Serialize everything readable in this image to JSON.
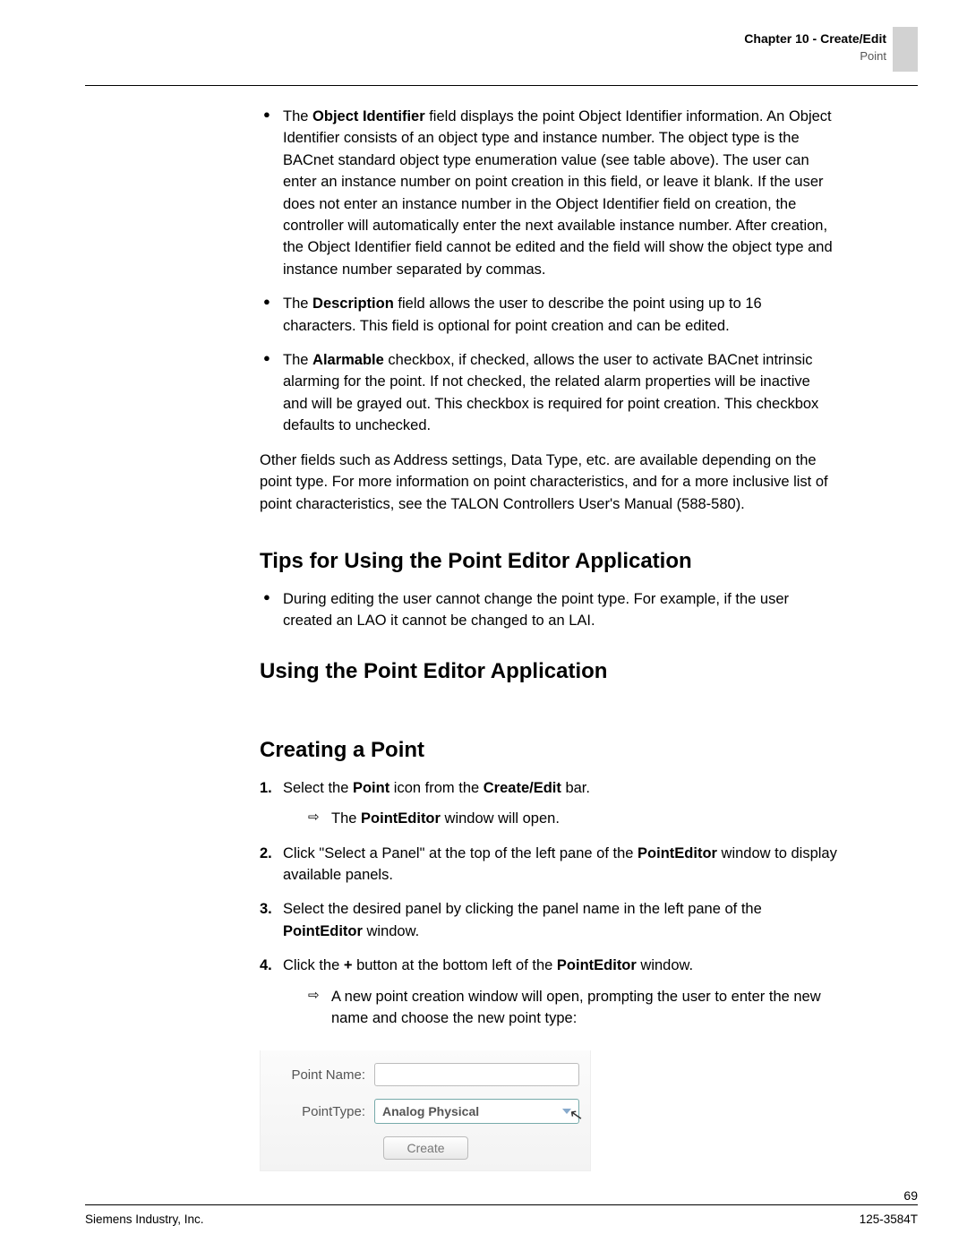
{
  "header": {
    "chapter_label": "Chapter 10 - Create/Edit",
    "section_label": "Point"
  },
  "bullets_top": [
    {
      "prefix": "The ",
      "bold": "Object Identifier",
      "rest": " field displays the point Object Identifier information. An Object Identifier consists of an object type and instance number. The object type is the BACnet standard object type enumeration value (see table above). The user can enter an instance number on point creation in this field, or leave it blank. If the user does not enter an instance number in the Object Identifier field on creation, the controller will automatically enter the next available instance number. After creation, the Object Identifier field cannot be edited and the field will show the object type and instance number separated by commas."
    },
    {
      "prefix": "The ",
      "bold": "Description",
      "rest": " field allows the user to describe the point using up to 16 characters. This field is optional for point creation and can be edited."
    },
    {
      "prefix": "The ",
      "bold": "Alarmable",
      "rest": " checkbox, if checked, allows the user to activate BACnet intrinsic alarming for the point. If not checked, the related alarm properties will be inactive and will be grayed out. This checkbox is required for point creation. This checkbox defaults to unchecked."
    }
  ],
  "after_bullets_para": "Other fields such as Address settings, Data Type, etc. are available depending on the point type. For more information on point characteristics, and for a more inclusive list of point characteristics, see the TALON Controllers User's Manual (588-580).",
  "h_tips": "Tips for Using the Point Editor Application",
  "tips_bullets": [
    "During editing the user cannot change the point type. For example, if the user created an LAO it cannot be changed to an LAI."
  ],
  "h_using": "Using the Point Editor Application",
  "h_creating": "Creating a Point",
  "steps": [
    {
      "num": "1.",
      "html": "Select the <b>Point</b> icon from the <b>Create/Edit</b> bar.",
      "sub": "The <b>PointEditor</b> window will open."
    },
    {
      "num": "2.",
      "html": "Click \"Select a Panel\" at the top of the left pane of the <b>PointEditor</b> window to display available panels."
    },
    {
      "num": "3.",
      "html": "Select the desired panel by clicking the panel name in the left pane of the <b>PointEditor</b> window."
    },
    {
      "num": "4.",
      "html": "Click the <b>+</b> button at the bottom left of the <b>PointEditor</b> window.",
      "sub": "A new point creation window will open, prompting the user to enter the new name and choose the new point type:"
    }
  ],
  "form": {
    "label_name": "Point Name:",
    "label_type": "PointType:",
    "select_value": "Analog Physical",
    "button_label": "Create"
  },
  "footer": {
    "left": "Siemens Industry, Inc.",
    "right": "125-3584T",
    "page": "69"
  }
}
